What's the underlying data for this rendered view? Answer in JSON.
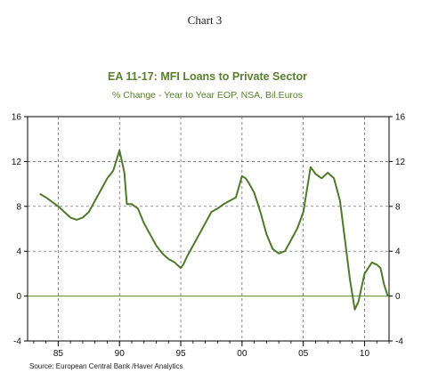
{
  "header": {
    "supertitle": "Chart 3",
    "title": "EA 11-17: MFI Loans to Private Sector",
    "subtitle": "% Change - Year to Year   EOP, NSA, Bil.Euros",
    "source": "Source:  European Central Bank /Haver Analytics"
  },
  "chart_data": {
    "type": "line",
    "title": "EA 11-17: MFI Loans to Private Sector",
    "subtitle": "% Change - Year to Year   EOP, NSA, Bil.Euros",
    "xlabel": "",
    "ylabel": "",
    "xlim": [
      1982.5,
      2012
    ],
    "ylim": [
      -4,
      16
    ],
    "yticks": [
      -4,
      0,
      4,
      8,
      12,
      16
    ],
    "xticks": [
      1985,
      1990,
      1995,
      2000,
      2005,
      2010
    ],
    "xtick_labels": [
      "85",
      "90",
      "95",
      "00",
      "05",
      "10"
    ],
    "grid": true,
    "line_color": "#4f7a2b",
    "zero_line_color": "#5a8a2a",
    "series": [
      {
        "x": [
          1983.5,
          1984.0,
          1984.5,
          1985.0,
          1985.5,
          1986.0,
          1986.5,
          1987.0,
          1987.5,
          1988.0,
          1988.5,
          1989.0,
          1989.5,
          1990.0,
          1990.2,
          1990.4,
          1990.6,
          1991.0,
          1991.5,
          1992.0,
          1992.5,
          1993.0,
          1993.5,
          1994.0,
          1994.5,
          1995.0,
          1995.2,
          1995.5,
          1996.0,
          1996.5,
          1997.0,
          1997.5,
          1998.0,
          1998.5,
          1999.0,
          1999.5,
          2000.0,
          2000.3,
          2000.6,
          2001.0,
          2001.5,
          2002.0,
          2002.5,
          2003.0,
          2003.5,
          2004.0,
          2004.5,
          2005.0,
          2005.3,
          2005.6,
          2006.0,
          2006.5,
          2007.0,
          2007.5,
          2008.0,
          2008.4,
          2008.8,
          2009.2,
          2009.5,
          2009.8,
          2010.0,
          2010.3,
          2010.6,
          2011.0,
          2011.3,
          2011.6,
          2011.9
        ],
        "values": [
          9.1,
          8.8,
          8.4,
          8.0,
          7.5,
          7.0,
          6.8,
          7.0,
          7.5,
          8.5,
          9.5,
          10.5,
          11.2,
          13.0,
          12.0,
          11.0,
          8.2,
          8.2,
          7.8,
          6.5,
          5.5,
          4.5,
          3.8,
          3.3,
          3.0,
          2.5,
          2.8,
          3.5,
          4.5,
          5.5,
          6.5,
          7.5,
          7.8,
          8.2,
          8.5,
          8.8,
          10.7,
          10.5,
          10.0,
          9.2,
          7.5,
          5.5,
          4.2,
          3.8,
          4.0,
          5.0,
          6.0,
          7.5,
          9.5,
          11.5,
          10.9,
          10.5,
          11.0,
          10.5,
          8.5,
          5.0,
          1.5,
          -1.2,
          -0.5,
          1.0,
          2.0,
          2.5,
          3.0,
          2.8,
          2.5,
          1.0,
          0.0
        ]
      }
    ]
  }
}
